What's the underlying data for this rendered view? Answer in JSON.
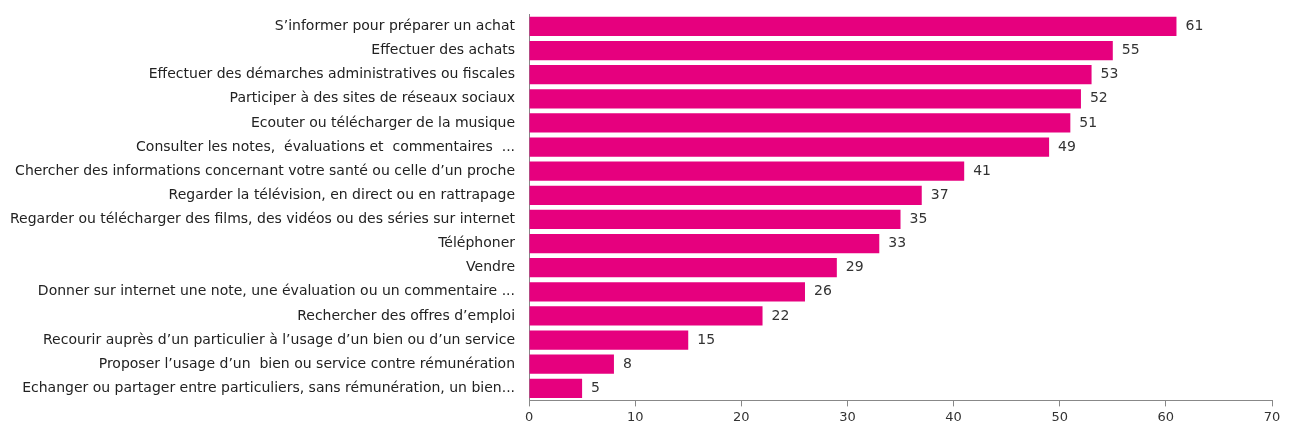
{
  "chart_data": {
    "type": "bar",
    "orientation": "horizontal",
    "categories": [
      "S’informer pour préparer un achat",
      "Effectuer des achats",
      "Effectuer des démarches administratives ou fiscales",
      "Participer à des sites de réseaux sociaux",
      "Ecouter ou télécharger de la musique",
      "Consulter les notes,  évaluations et  commentaires  ...",
      "Chercher des informations concernant votre santé ou celle d’un proche",
      "Regarder la télévision, en direct ou en rattrapage",
      "Regarder ou télécharger des films, des vidéos ou des séries sur internet",
      "Téléphoner",
      "Vendre",
      "Donner sur internet une note, une évaluation ou un commentaire ...",
      "Rechercher des offres d’emploi",
      "Recourir auprès d’un particulier à l’usage d’un bien ou d’un service",
      "Proposer l’usage d’un  bien ou service contre rémunération",
      "Echanger ou partager entre particuliers, sans rémunération, un bien..."
    ],
    "values": [
      61,
      55,
      53,
      52,
      51,
      49,
      41,
      37,
      35,
      33,
      29,
      26,
      22,
      15,
      8,
      5
    ],
    "color": "#e6007e",
    "data_labels": true,
    "xlim": [
      0,
      70
    ],
    "xticks": [
      0,
      10,
      20,
      30,
      40,
      50,
      60,
      70
    ],
    "grid": false,
    "legend": false
  }
}
